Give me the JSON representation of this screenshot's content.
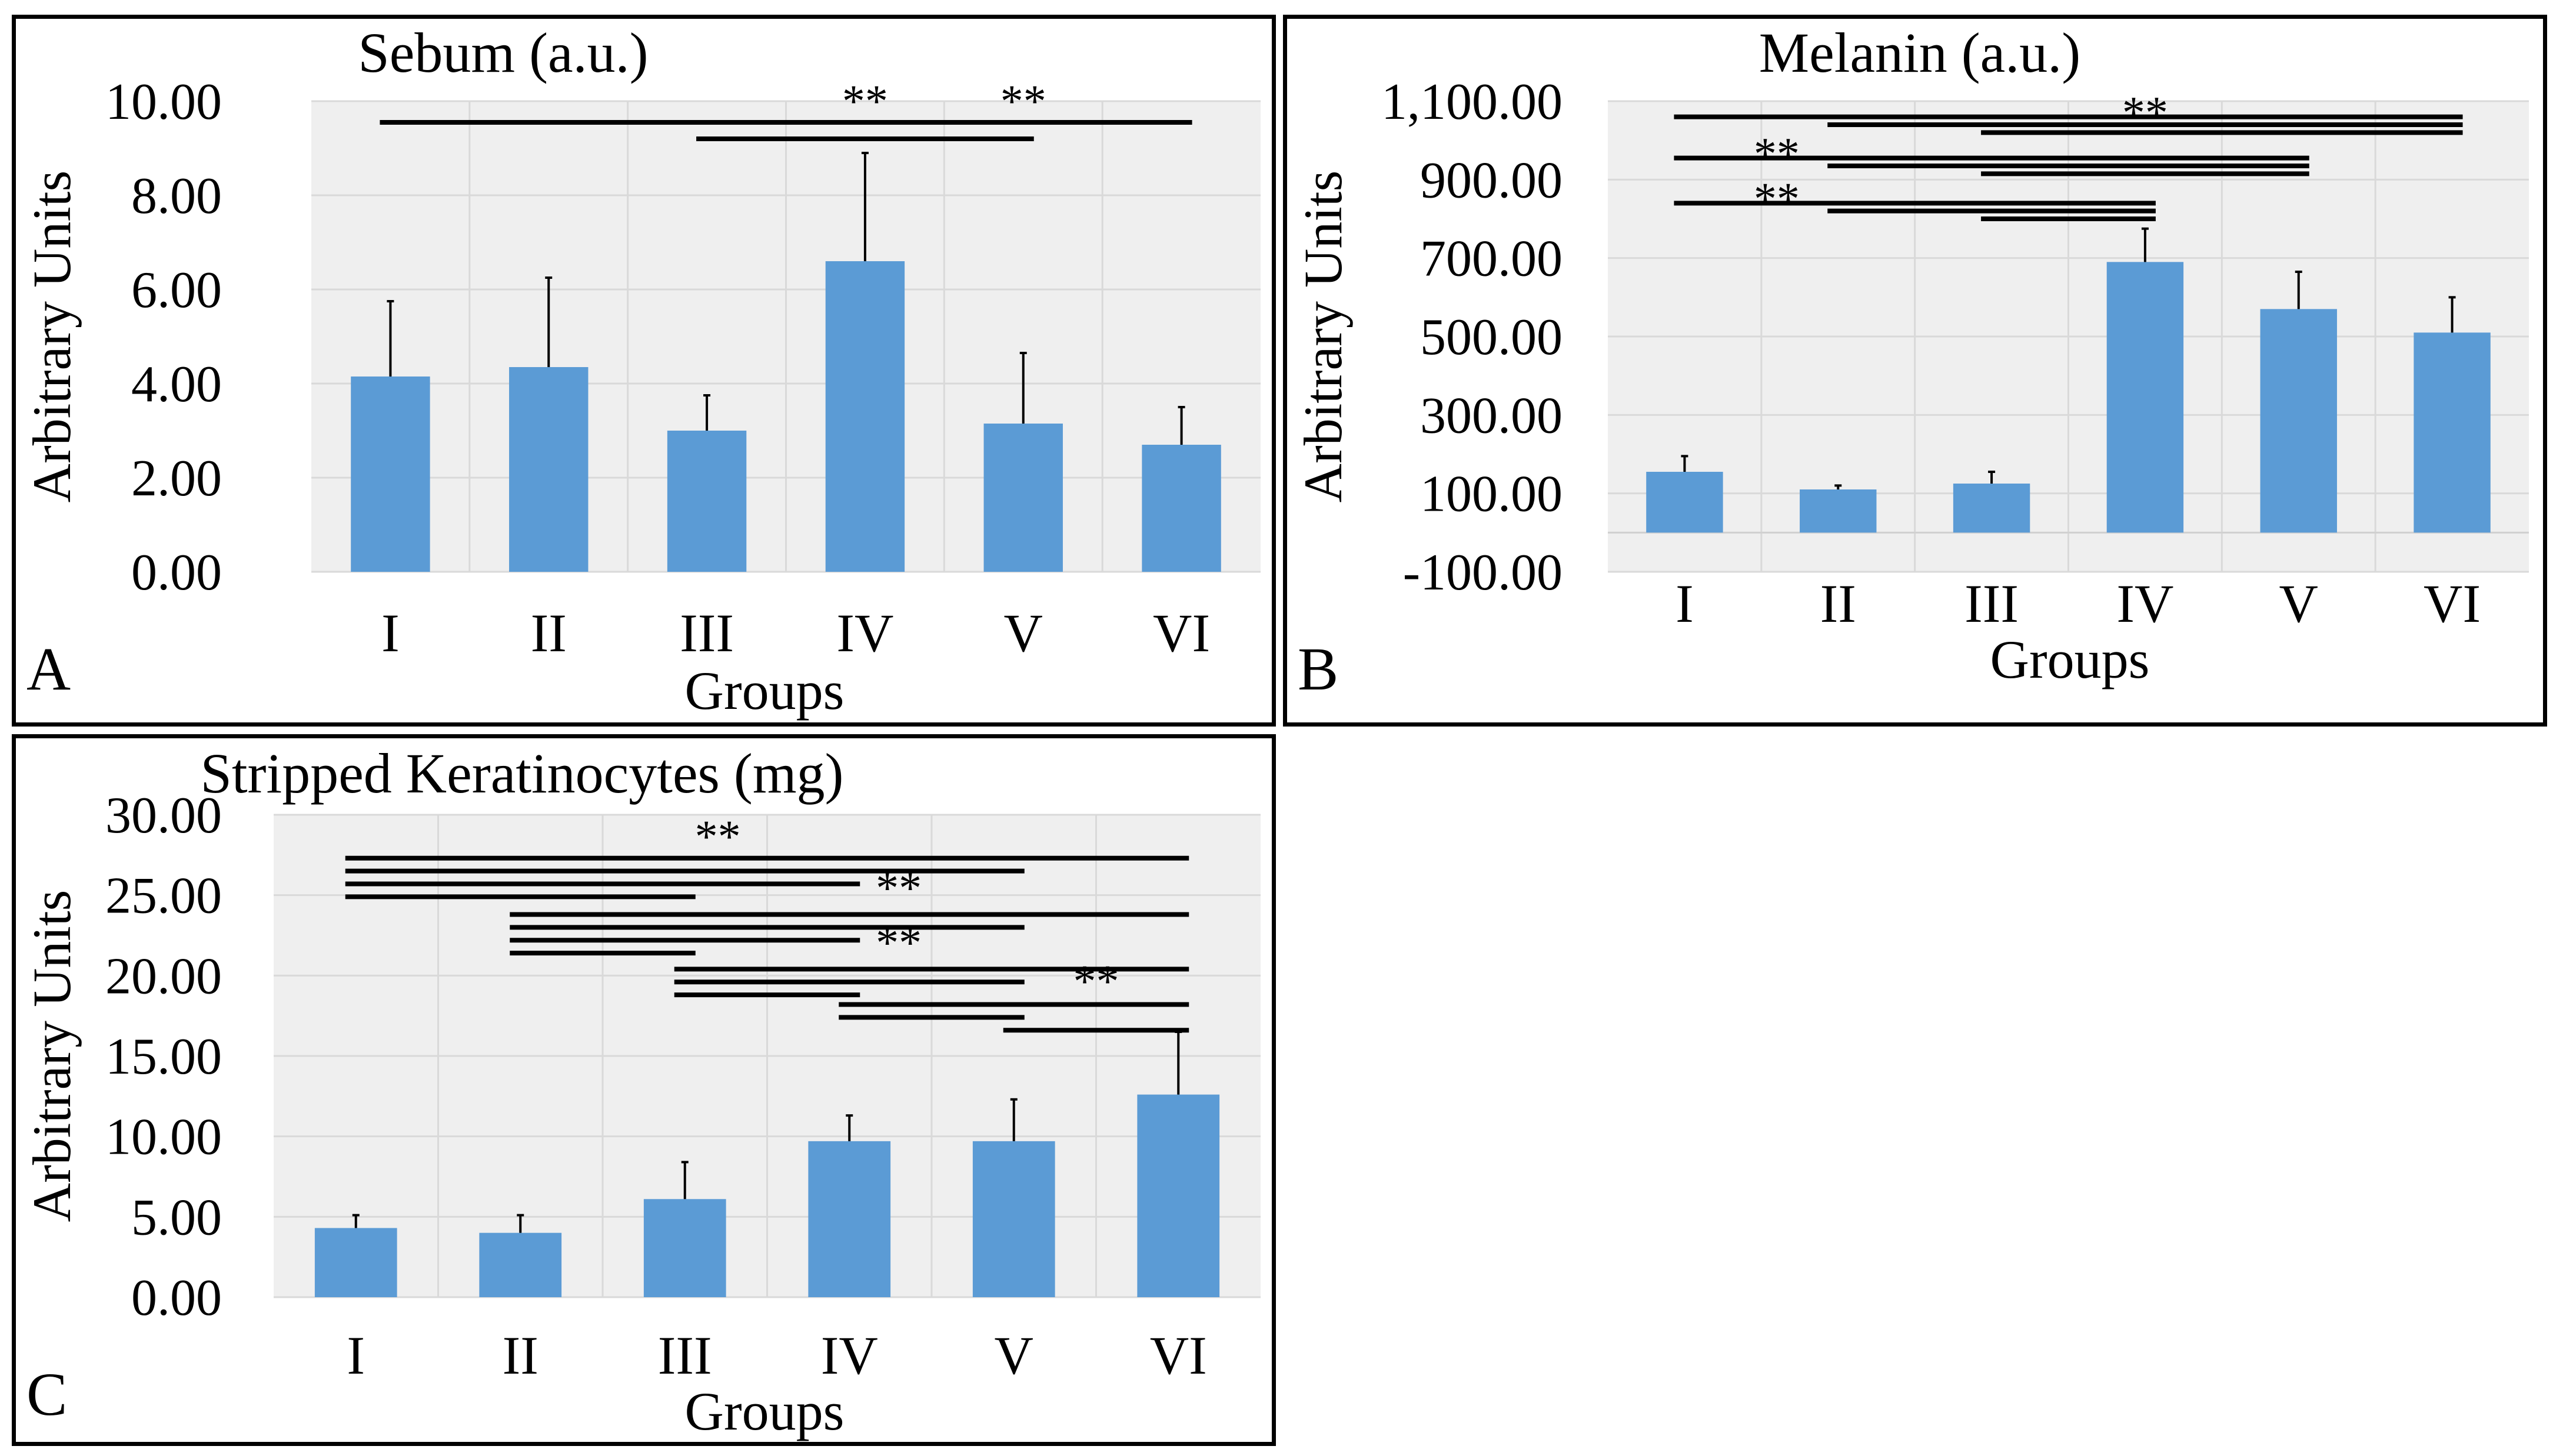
{
  "figure": {
    "panels": [
      {
        "id": "a",
        "letter": "A"
      },
      {
        "id": "b",
        "letter": "B"
      },
      {
        "id": "c",
        "letter": "C"
      }
    ]
  },
  "chart_data": [
    {
      "type": "bar",
      "panel": "A",
      "title": "Sebum (a.u.)",
      "xlabel": "Groups",
      "ylabel": "Arbitrary Units",
      "categories": [
        "I",
        "II",
        "III",
        "IV",
        "V",
        "VI"
      ],
      "values": [
        4.15,
        4.35,
        3.0,
        6.6,
        3.15,
        2.7
      ],
      "errors": [
        1.6,
        1.9,
        0.75,
        2.3,
        1.5,
        0.8
      ],
      "ylim": [
        0,
        10
      ],
      "yticks": [
        0,
        2,
        4,
        6,
        8,
        10
      ],
      "ytick_labels": [
        "0.00",
        "2.00",
        "4.00",
        "6.00",
        "8.00",
        "10.00"
      ],
      "grid": true,
      "bar_color": "#5b9bd5",
      "significance": [
        {
          "label": "**",
          "label_between": [
            3,
            4
          ],
          "lines": [
            {
              "from": 0,
              "to": 3,
              "y": 9.55
            },
            {
              "from": 2,
              "to": 3,
              "y": 9.2
            }
          ]
        },
        {
          "label": "**",
          "label_between": [
            4,
            5
          ],
          "lines": [
            {
              "from": 3,
              "to": 5,
              "y": 9.55
            },
            {
              "from": 3,
              "to": 4,
              "y": 9.2
            }
          ]
        }
      ]
    },
    {
      "type": "bar",
      "panel": "B",
      "title": "Melanin (a.u.)",
      "xlabel": "Groups",
      "ylabel": "Arbitrary Units",
      "categories": [
        "I",
        "II",
        "III",
        "IV",
        "V",
        "VI"
      ],
      "values": [
        155,
        110,
        125,
        690,
        570,
        510
      ],
      "errors": [
        40,
        10,
        30,
        85,
        95,
        90
      ],
      "ylim": [
        -100,
        1100
      ],
      "yticks": [
        -100,
        100,
        300,
        500,
        700,
        900,
        1100
      ],
      "ytick_labels": [
        "-100.00",
        "100.00",
        "300.00",
        "500.00",
        "700.00",
        "900.00",
        "1,100.00"
      ],
      "grid": true,
      "bar_color": "#5b9bd5",
      "significance": [
        {
          "label": "**",
          "label_at": [
            3,
            1020
          ],
          "lines": [
            {
              "from": 0,
              "to": 5,
              "y": 1060
            },
            {
              "from": 1,
              "to": 5,
              "y": 1040
            },
            {
              "from": 2,
              "to": 5,
              "y": 1020
            }
          ]
        },
        {
          "label": "**",
          "label_at": [
            0.6,
            915
          ],
          "lines": [
            {
              "from": 0,
              "to": 4,
              "y": 955
            },
            {
              "from": 1,
              "to": 4,
              "y": 935
            },
            {
              "from": 2,
              "to": 4,
              "y": 915
            }
          ]
        },
        {
          "label": "**",
          "label_at": [
            0.6,
            800
          ],
          "lines": [
            {
              "from": 0,
              "to": 3,
              "y": 840
            },
            {
              "from": 1,
              "to": 3,
              "y": 820
            },
            {
              "from": 2,
              "to": 3,
              "y": 800
            }
          ]
        }
      ]
    },
    {
      "type": "bar",
      "panel": "C",
      "title": "Stripped Keratinocytes (mg)",
      "xlabel": "Groups",
      "ylabel": "Arbitrary Units",
      "categories": [
        "I",
        "II",
        "III",
        "IV",
        "V",
        "VI"
      ],
      "values": [
        4.3,
        4.0,
        6.1,
        9.7,
        9.7,
        12.6
      ],
      "errors": [
        0.8,
        1.1,
        2.3,
        1.6,
        2.6,
        3.9
      ],
      "ylim": [
        0,
        30
      ],
      "yticks": [
        0,
        5,
        10,
        15,
        20,
        25,
        30
      ],
      "ytick_labels": [
        "0.00",
        "5.00",
        "10.00",
        "15.00",
        "20.00",
        "25.00",
        "30.00"
      ],
      "grid": true,
      "bar_color": "#5b9bd5",
      "significance": [
        {
          "label": "**",
          "label_at": [
            2.2,
            27.4
          ],
          "lines": [
            {
              "from": 0,
              "to": 5,
              "y": 27.3
            },
            {
              "from": 0,
              "to": 4,
              "y": 26.5
            },
            {
              "from": 0,
              "to": 3,
              "y": 25.7
            },
            {
              "from": 0,
              "to": 2,
              "y": 24.9
            }
          ]
        },
        {
          "label": "**",
          "label_at": [
            3.3,
            24.2
          ],
          "lines": [
            {
              "from": 1,
              "to": 5,
              "y": 23.8
            },
            {
              "from": 1,
              "to": 4,
              "y": 23.0
            },
            {
              "from": 1,
              "to": 3,
              "y": 22.2
            },
            {
              "from": 1,
              "to": 2,
              "y": 21.4
            }
          ]
        },
        {
          "label": "**",
          "label_at": [
            3.3,
            20.8
          ],
          "lines": [
            {
              "from": 2,
              "to": 5,
              "y": 20.4
            },
            {
              "from": 2,
              "to": 4,
              "y": 19.6
            },
            {
              "from": 2,
              "to": 3,
              "y": 18.8
            }
          ]
        },
        {
          "label": "**",
          "label_at": [
            4.5,
            18.4
          ],
          "lines": [
            {
              "from": 3,
              "to": 5,
              "y": 18.2
            },
            {
              "from": 3,
              "to": 4,
              "y": 17.4
            },
            {
              "from": 4,
              "to": 5,
              "y": 16.6
            }
          ]
        }
      ]
    }
  ]
}
